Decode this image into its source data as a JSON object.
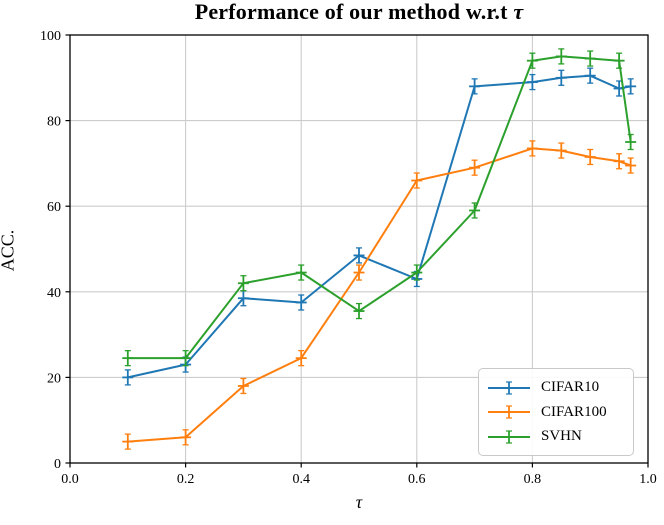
{
  "title": {
    "prefix": "Performance of our method w.r.t ",
    "tau": "τ"
  },
  "chart_data": {
    "type": "line",
    "title": "Performance of our method w.r.t τ",
    "xlabel": "τ",
    "ylabel": "ACC.",
    "xlim": [
      0.0,
      1.0
    ],
    "ylim": [
      0,
      100
    ],
    "xticks": [
      "0.0",
      "0.2",
      "0.4",
      "0.6",
      "0.8",
      "1.0"
    ],
    "yticks": [
      "0",
      "20",
      "40",
      "60",
      "80",
      "100"
    ],
    "grid": true,
    "legend_position": "lower right",
    "marker": "plus-errorbar",
    "yerr_approx": 2,
    "x": [
      0.1,
      0.2,
      0.3,
      0.4,
      0.5,
      0.6,
      0.7,
      0.8,
      0.85,
      0.9,
      0.95,
      0.97
    ],
    "series": [
      {
        "name": "CIFAR10",
        "color": "#1f77b4",
        "values": [
          20,
          23,
          38.5,
          37.5,
          48.5,
          43,
          88,
          89,
          90,
          90.5,
          87.5,
          88
        ]
      },
      {
        "name": "CIFAR100",
        "color": "#ff7f0e",
        "values": [
          5,
          6,
          18,
          24.5,
          44.5,
          66,
          69,
          73.5,
          73,
          71.5,
          70.5,
          69.5
        ]
      },
      {
        "name": "SVHN",
        "color": "#2ca02c",
        "values": [
          24.5,
          24.5,
          42,
          44.5,
          35.5,
          44.5,
          59,
          94,
          95,
          94.5,
          94,
          75
        ]
      }
    ]
  },
  "colors": {
    "grid": "#cccccc",
    "axis": "#000000",
    "text": "#000000"
  }
}
